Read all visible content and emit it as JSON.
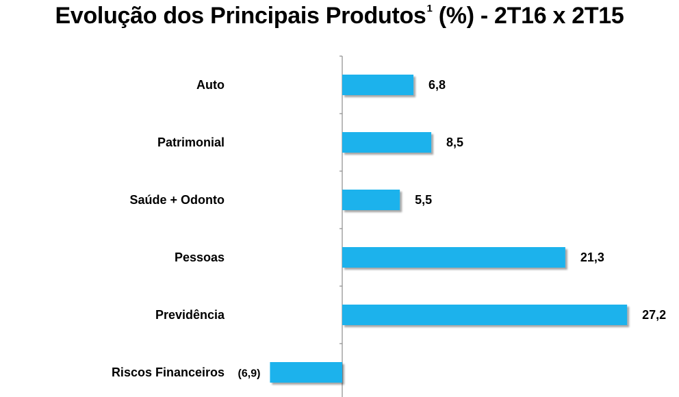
{
  "title": {
    "main": "Evolução dos Principais Produtos",
    "superscript": "1",
    "suffix": " (%) - 2T16 x 2T15"
  },
  "chart_data": {
    "type": "bar",
    "orientation": "horizontal",
    "title": "Evolução dos Principais Produtos¹ (%) - 2T16 x 2T15",
    "categories": [
      "Auto",
      "Patrimonial",
      "Saúde + Odonto",
      "Pessoas",
      "Previdência",
      "Riscos Financeiros"
    ],
    "values": [
      6.8,
      8.5,
      5.5,
      21.3,
      27.2,
      -6.9
    ],
    "value_labels": [
      "6,8",
      "8,5",
      "5,5",
      "21,3",
      "27,2",
      "(6,9)"
    ],
    "bar_color": "#1fb2ec",
    "grid": false,
    "legend": "none"
  }
}
